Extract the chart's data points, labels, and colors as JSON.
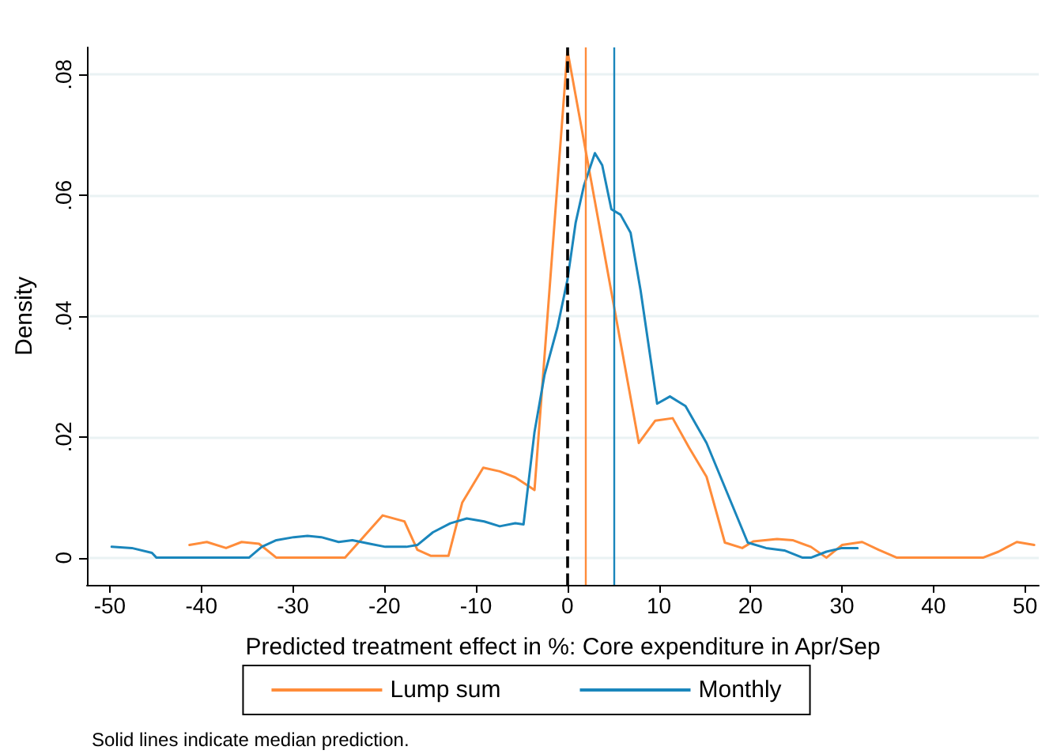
{
  "chart_data": {
    "type": "line",
    "xlabel": "Predicted treatment effect in %: Core expenditure in Apr/Sep",
    "ylabel": "Density",
    "xlim": [
      -52.5,
      51.5
    ],
    "xticks": [
      -50,
      -40,
      -30,
      -20,
      -10,
      0,
      10,
      20,
      30,
      40,
      50
    ],
    "ylim": [
      -0.0045,
      0.0845
    ],
    "yticks": [
      {
        "value": 0,
        "label": "0"
      },
      {
        "value": 0.02,
        "label": ".02"
      },
      {
        "value": 0.04,
        "label": ".04"
      },
      {
        "value": 0.06,
        "label": ".06"
      },
      {
        "value": 0.08,
        "label": ".08"
      }
    ],
    "grid": "y",
    "legend": "bottom",
    "marker": "none",
    "line_style": "solid",
    "series": [
      {
        "name": "Lump sum",
        "color": "#ff8c3a",
        "x": [
          -41.3,
          -39.4,
          -37.3,
          -35.6,
          -33.7,
          -31.8,
          -24.3,
          -20.2,
          -17.8,
          -16.4,
          -14.9,
          -13.0,
          -11.5,
          -9.2,
          -7.4,
          -5.7,
          -3.6,
          0,
          7.8,
          9.6,
          11.5,
          13.3,
          15.2,
          17.2,
          19.1,
          20.3,
          22.9,
          24.6,
          26.6,
          28.3,
          30,
          32.2,
          34,
          36,
          45.4,
          47.1,
          49.1,
          51
        ],
        "values": [
          0.0021,
          0.0026,
          0.0016,
          0.0026,
          0.0023,
          0,
          0,
          0.007,
          0.006,
          0.0013,
          0.0003,
          0.0003,
          0.0091,
          0.0149,
          0.0143,
          0.0133,
          0.0112,
          0.084,
          0.019,
          0.0227,
          0.0231,
          0.0182,
          0.0134,
          0.0025,
          0.0016,
          0.0027,
          0.0031,
          0.0029,
          0.0018,
          0,
          0.0021,
          0.0026,
          0.0013,
          0,
          0,
          0.001,
          0.0026,
          0.0021
        ]
      },
      {
        "name": "Monthly",
        "color": "#1a86bc",
        "x": [
          -49.8,
          -47.6,
          -45.4,
          -44.9,
          -34.8,
          -33.4,
          -31.8,
          -29.9,
          -28.4,
          -26.9,
          -25,
          -23.5,
          -21.6,
          -19.9,
          -17.6,
          -16.4,
          -14.7,
          -12.8,
          -11,
          -9.1,
          -7.4,
          -5.7,
          -4.8,
          -3.6,
          -2.5,
          -1.1,
          0,
          0.9,
          1.8,
          3,
          3.8,
          4.8,
          5.8,
          6.9,
          8,
          9.8,
          11.2,
          12.9,
          15.2,
          19.7,
          21.7,
          23.7,
          25.7,
          26.6,
          28.3,
          30,
          31.7
        ],
        "values": [
          0.0018,
          0.0016,
          0.0008,
          0,
          0,
          0.0018,
          0.0029,
          0.0034,
          0.0036,
          0.0034,
          0.0026,
          0.0029,
          0.0023,
          0.0018,
          0.0018,
          0.0021,
          0.0042,
          0.0057,
          0.0065,
          0.006,
          0.0052,
          0.0057,
          0.0055,
          0.0208,
          0.0303,
          0.0381,
          0.046,
          0.0555,
          0.0616,
          0.067,
          0.065,
          0.0577,
          0.0568,
          0.0538,
          0.0442,
          0.0255,
          0.0267,
          0.0251,
          0.019,
          0.0025,
          0.0016,
          0.0012,
          0,
          0,
          0.001,
          0.0016,
          0.0016
        ]
      }
    ],
    "ref_lines": [
      {
        "axis": "x",
        "value": 0,
        "color": "#000000",
        "line_style": "dashed"
      },
      {
        "axis": "x",
        "value": 2,
        "color": "#ff8c3a",
        "line_style": "solid"
      },
      {
        "axis": "x",
        "value": 5,
        "color": "#1a86bc",
        "line_style": "solid"
      }
    ],
    "annotations": [
      "Solid lines indicate median prediction."
    ]
  }
}
